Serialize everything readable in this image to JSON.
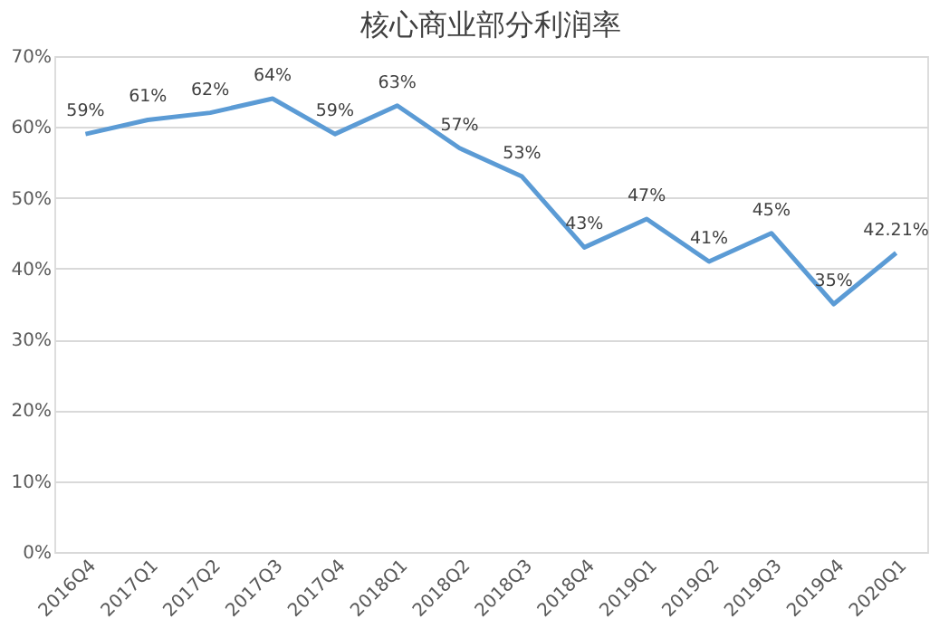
{
  "chart_data": {
    "type": "line",
    "title": "核心商业部分利润率",
    "categories": [
      "2016Q4",
      "2017Q1",
      "2017Q2",
      "2017Q3",
      "2017Q4",
      "2018Q1",
      "2018Q2",
      "2018Q3",
      "2018Q4",
      "2019Q1",
      "2019Q2",
      "2019Q3",
      "2019Q4",
      "2020Q1"
    ],
    "series": [
      {
        "color": "#5b9bd5",
        "values": [
          59,
          61,
          62,
          64,
          59,
          63,
          57,
          53,
          43,
          47,
          41,
          45,
          35,
          42.21
        ],
        "value_labels": [
          "59%",
          "61%",
          "62%",
          "64%",
          "59%",
          "63%",
          "57%",
          "53%",
          "43%",
          "47%",
          "41%",
          "45%",
          "35%",
          "42.21%"
        ]
      }
    ],
    "ylim": [
      0,
      70
    ],
    "yticks": [
      {
        "value": 0,
        "label": "0%"
      },
      {
        "value": 10,
        "label": "10%"
      },
      {
        "value": 20,
        "label": "20%"
      },
      {
        "value": 30,
        "label": "30%"
      },
      {
        "value": 40,
        "label": "40%"
      },
      {
        "value": 50,
        "label": "50%"
      },
      {
        "value": 60,
        "label": "60%"
      },
      {
        "value": 70,
        "label": "70%"
      }
    ],
    "grid": "y",
    "marker": "none",
    "line_style": "solid"
  }
}
